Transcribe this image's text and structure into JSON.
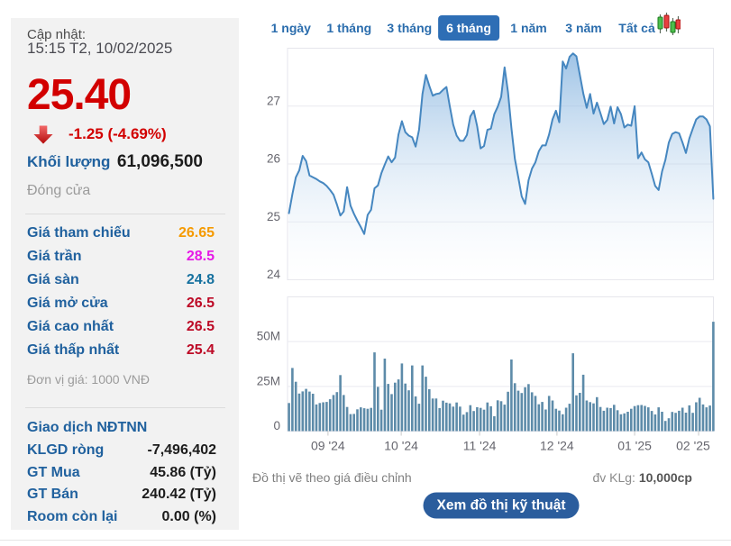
{
  "update": {
    "label": "Cập nhật:",
    "timestamp": "15:15 T2, 10/02/2025"
  },
  "quote": {
    "price": "25.40",
    "change": "-1.25 (-4.69%)",
    "volume_label": "Khối lượng",
    "volume_value": "61,096,500",
    "session_status": "Đóng cửa"
  },
  "price_table": {
    "rows": [
      {
        "label": "Giá tham chiếu",
        "value": "26.65",
        "color": "#f59a00"
      },
      {
        "label": "Giá trần",
        "value": "28.5",
        "color": "#e619e6"
      },
      {
        "label": "Giá sàn",
        "value": "24.8",
        "color": "#16719f"
      },
      {
        "label": "Giá mở cửa",
        "value": "26.5",
        "color": "#bd0a26"
      },
      {
        "label": "Giá cao nhất",
        "value": "26.5",
        "color": "#bd0a26"
      },
      {
        "label": "Giá thấp nhất",
        "value": "25.4",
        "color": "#bd0a26"
      }
    ],
    "unit_note": "Đơn vị giá: 1000 VNĐ"
  },
  "foreign_trade": {
    "title": "Giao dịch NĐTNN",
    "rows": [
      {
        "label": "KLGD ròng",
        "value": "-7,496,402"
      },
      {
        "label": "GT Mua",
        "value": "45.86 (Tỷ)"
      },
      {
        "label": "GT Bán",
        "value": "240.42 (Tỷ)"
      },
      {
        "label": "Room còn lại",
        "value": "0.00 (%)"
      }
    ]
  },
  "tabs": {
    "items": [
      {
        "label": "1 ngày",
        "active": false
      },
      {
        "label": "1 tháng",
        "active": false
      },
      {
        "label": "3 tháng",
        "active": false
      },
      {
        "label": "6 tháng",
        "active": true
      },
      {
        "label": "1 năm",
        "active": false
      },
      {
        "label": "3 năm",
        "active": false
      },
      {
        "label": "Tất cả",
        "active": false
      }
    ],
    "candlestick_icon": "candlestick-chart-icon"
  },
  "chart_data": {
    "type": "area+bar",
    "title": "",
    "price_series": [
      25.15,
      25.48,
      25.77,
      25.89,
      26.14,
      26.05,
      25.8,
      25.77,
      25.74,
      25.7,
      25.67,
      25.62,
      25.55,
      25.47,
      25.3,
      25.11,
      25.18,
      25.6,
      25.28,
      25.14,
      25.02,
      24.91,
      24.79,
      25.12,
      25.21,
      25.58,
      25.63,
      25.84,
      25.99,
      26.13,
      26.03,
      26.11,
      26.51,
      26.74,
      26.55,
      26.49,
      26.46,
      26.3,
      26.59,
      27.21,
      27.54,
      27.35,
      27.18,
      27.21,
      27.22,
      27.28,
      27.33,
      27.0,
      26.68,
      26.49,
      26.4,
      26.4,
      26.5,
      26.82,
      26.92,
      26.65,
      26.27,
      26.31,
      26.59,
      26.61,
      26.86,
      26.99,
      27.16,
      27.67,
      27.24,
      26.62,
      26.09,
      25.77,
      25.44,
      25.31,
      25.72,
      25.92,
      26.03,
      26.22,
      26.32,
      26.32,
      26.51,
      26.77,
      26.92,
      26.72,
      27.77,
      27.65,
      27.85,
      27.91,
      27.86,
      27.54,
      27.22,
      26.97,
      27.21,
      26.87,
      27.06,
      26.88,
      26.69,
      26.76,
      26.99,
      26.7,
      26.98,
      26.86,
      26.63,
      26.68,
      26.66,
      27.0,
      26.1,
      26.2,
      26.08,
      26.03,
      25.83,
      25.62,
      25.55,
      25.87,
      26.07,
      26.37,
      26.52,
      26.55,
      26.53,
      26.37,
      26.19,
      26.44,
      26.61,
      26.77,
      26.82,
      26.82,
      26.77,
      26.65,
      25.4
    ],
    "volume_series_millions": [
      15.7,
      35.3,
      27.6,
      21.0,
      22.2,
      23.6,
      22.1,
      20.9,
      14.9,
      15.7,
      16.1,
      16.3,
      17.8,
      20.2,
      21.8,
      31.3,
      20.2,
      13.5,
      9.5,
      9.6,
      12.2,
      13.3,
      12.8,
      12.5,
      13.0,
      44.0,
      24.7,
      12.0,
      40.5,
      26.4,
      20.7,
      27.1,
      28.9,
      37.8,
      26.6,
      22.8,
      36.7,
      19.4,
      15.3,
      36.7,
      30.4,
      23.4,
      18.2,
      18.2,
      12.9,
      17.0,
      15.9,
      15.5,
      13.7,
      16.0,
      13.7,
      9.2,
      10.6,
      14.5,
      11.2,
      13.4,
      13.0,
      12.0,
      16.0,
      13.9,
      8.3,
      17.2,
      16.7,
      14.8,
      22.0,
      40.0,
      26.8,
      22.6,
      21.3,
      24.5,
      26.3,
      21.7,
      19.7,
      15.0,
      16.3,
      12.1,
      19.7,
      17.1,
      12.5,
      11.5,
      9.4,
      13.1,
      15.3,
      43.5,
      20.0,
      21.4,
      31.5,
      17.1,
      16.2,
      15.5,
      19.0,
      13.5,
      11.4,
      13.1,
      12.9,
      14.7,
      11.7,
      9.4,
      9.9,
      10.8,
      12.5,
      14.0,
      14.5,
      14.6,
      14.1,
      13.3,
      11.3,
      9.3,
      13.3,
      10.8,
      5.7,
      7.2,
      10.7,
      10.2,
      11.4,
      13.1,
      10.3,
      14.4,
      10.2,
      16.1,
      18.6,
      14.9,
      13.3,
      14.3,
      61.1
    ],
    "price_axis": {
      "min": 24,
      "max": 28,
      "ticks": [
        27,
        26,
        25,
        24
      ]
    },
    "volume_axis": {
      "min": 0,
      "max": 75,
      "ticks": [
        50,
        25,
        0
      ],
      "tick_labels": [
        "50M",
        "25M",
        "0"
      ]
    },
    "x_ticks": [
      {
        "label": "09 '24",
        "index": 11.4
      },
      {
        "label": "10 '24",
        "index": 32.8
      },
      {
        "label": "11 '24",
        "index": 55.7
      },
      {
        "label": "12 '24",
        "index": 78.3
      },
      {
        "label": "01 '25",
        "index": 101.0
      },
      {
        "label": "02 '25",
        "index": 119.7
      }
    ],
    "legend": "none",
    "grid": "horizontal",
    "colors": {
      "line": "#4687c0",
      "area_top": "rgba(118,170,219,0.70)",
      "area_bottom": "rgba(255,255,255,0.15)",
      "bars": "#5d8ba9",
      "grid": "#e9e9ef",
      "border": "#e6e6ec",
      "axis_text": "#66666e"
    }
  },
  "footer": {
    "note_left": "Đồ thị vẽ theo giá điều chỉnh",
    "note_right_label": "đv KLg:",
    "note_right_value": "10,000cp",
    "button": "Xem đồ thị kỹ thuật"
  },
  "colors": {
    "price_red": "#d20000",
    "label_blue": "#20619e",
    "dark_value": "#1c1c1c",
    "tab_blue": "#2b6dad",
    "tab_active_bg": "#2e6eb5",
    "button_bg": "#2b5d9d"
  }
}
